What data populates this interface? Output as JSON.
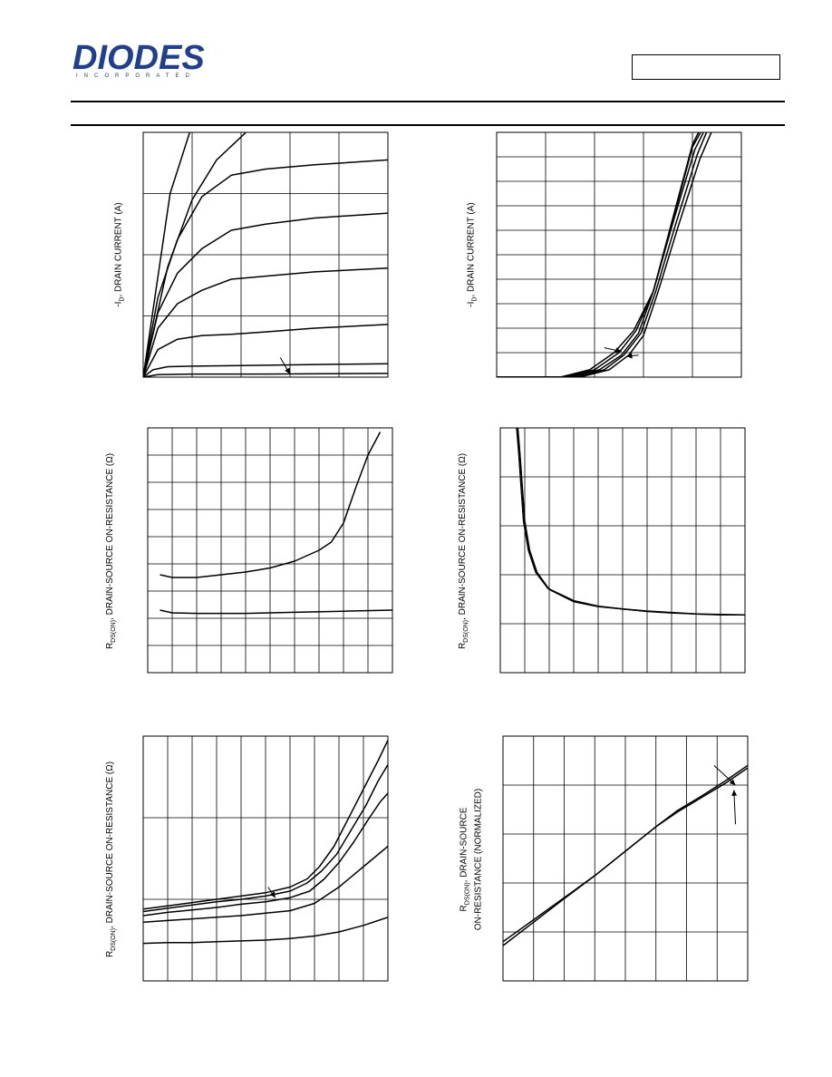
{
  "header": {
    "brand": "DIODES",
    "brand_sub": "INCORPORATED",
    "brand_color": "#1f3f8f",
    "part_number": ""
  },
  "chart_data": [
    {
      "type": "line",
      "ylabel_main": "-I",
      "ylabel_sub": "D",
      "ylabel_rest": ", DRAIN CURRENT (A)",
      "grid": true,
      "xlim": [
        0,
        5
      ],
      "ylim": [
        0,
        4
      ],
      "series": [
        {
          "x": [
            0,
            0.55,
            0.95
          ],
          "y": [
            0,
            3.0,
            4.0
          ]
        },
        {
          "x": [
            0,
            0.5,
            1.0,
            1.5,
            2.1
          ],
          "y": [
            0,
            1.8,
            2.9,
            3.55,
            4.0
          ]
        },
        {
          "x": [
            0,
            0.3,
            0.7,
            1.2,
            1.8,
            2.5,
            3.5,
            5.0
          ],
          "y": [
            0,
            1.3,
            2.25,
            2.95,
            3.3,
            3.4,
            3.47,
            3.55
          ]
        },
        {
          "x": [
            0,
            0.3,
            0.7,
            1.2,
            1.8,
            2.5,
            3.5,
            5.0
          ],
          "y": [
            0,
            1.05,
            1.7,
            2.1,
            2.4,
            2.5,
            2.6,
            2.68
          ]
        },
        {
          "x": [
            0,
            0.3,
            0.7,
            1.2,
            1.8,
            2.5,
            3.5,
            5.0
          ],
          "y": [
            0,
            0.8,
            1.2,
            1.42,
            1.6,
            1.65,
            1.72,
            1.78
          ]
        },
        {
          "x": [
            0,
            0.3,
            0.7,
            1.2,
            1.8,
            2.5,
            3.5,
            5.0
          ],
          "y": [
            0,
            0.45,
            0.62,
            0.68,
            0.7,
            0.74,
            0.8,
            0.86
          ]
        },
        {
          "x": [
            0,
            0.2,
            0.5,
            1.0,
            2.0,
            3.0,
            4.0,
            5.0
          ],
          "y": [
            0,
            0.12,
            0.17,
            0.18,
            0.19,
            0.2,
            0.21,
            0.22
          ]
        },
        {
          "x": [
            0,
            0.3,
            1.0,
            2.5,
            5.0
          ],
          "y": [
            0,
            0.04,
            0.05,
            0.05,
            0.06
          ]
        }
      ],
      "arrows": [
        {
          "from": [
            2.8,
            0.32
          ],
          "to": [
            3.0,
            0.05
          ]
        }
      ]
    },
    {
      "type": "line",
      "ylabel_main": "-I",
      "ylabel_sub": "D",
      "ylabel_rest": ", DRAIN CURRENT (A)",
      "grid": true,
      "xlim": [
        0,
        5
      ],
      "ylim": [
        0,
        10
      ],
      "series": [
        {
          "x": [
            0,
            1.3,
            1.9,
            2.4,
            2.8,
            3.2,
            3.6,
            4.0,
            4.2
          ],
          "y": [
            0,
            0,
            0.3,
            1.0,
            1.9,
            3.5,
            6.5,
            9.5,
            10.3
          ]
        },
        {
          "x": [
            0,
            1.4,
            2.0,
            2.5,
            2.85,
            3.2,
            3.6,
            4.0,
            4.25
          ],
          "y": [
            0,
            0,
            0.3,
            1.0,
            1.9,
            3.5,
            6.4,
            9.4,
            10.3
          ]
        },
        {
          "x": [
            0,
            1.5,
            2.1,
            2.55,
            2.9,
            3.2,
            3.6,
            4.05,
            4.3
          ],
          "y": [
            0,
            0,
            0.3,
            0.9,
            1.8,
            3.5,
            6.3,
            9.3,
            10.3
          ]
        },
        {
          "x": [
            0,
            1.6,
            2.2,
            2.6,
            2.95,
            3.25,
            3.65,
            4.1,
            4.35
          ],
          "y": [
            0,
            0,
            0.3,
            0.9,
            1.8,
            3.5,
            6.2,
            9.1,
            10.3
          ]
        },
        {
          "x": [
            0,
            1.7,
            2.3,
            2.7,
            3.0,
            3.3,
            3.7,
            4.15,
            4.45
          ],
          "y": [
            0,
            0,
            0.3,
            0.9,
            1.7,
            3.5,
            6.1,
            8.9,
            10.3
          ]
        }
      ],
      "arrows": [
        {
          "from": [
            2.2,
            1.2
          ],
          "to": [
            2.55,
            1.05
          ]
        },
        {
          "from": [
            2.9,
            0.9
          ],
          "to": [
            2.65,
            0.85
          ]
        }
      ]
    },
    {
      "type": "line",
      "ylabel_main": "R",
      "ylabel_sub": "DS(ON)",
      "ylabel_rest": ", DRAIN-SOURCE ON-RESISTANCE (Ω)",
      "grid": true,
      "xlim": [
        0,
        10
      ],
      "ylim": [
        0,
        9
      ],
      "series": [
        {
          "x": [
            0.5,
            1.0,
            2.0,
            3.0,
            4.0,
            5.0,
            6.0,
            7.0,
            7.5,
            8.0,
            8.5,
            9.0,
            9.5
          ],
          "y": [
            3.6,
            3.5,
            3.5,
            3.6,
            3.7,
            3.85,
            4.1,
            4.5,
            4.8,
            5.5,
            6.8,
            8.0,
            8.85
          ]
        },
        {
          "x": [
            0.5,
            1.0,
            2.0,
            4.0,
            6.0,
            8.0,
            10.0
          ],
          "y": [
            2.3,
            2.2,
            2.18,
            2.18,
            2.22,
            2.26,
            2.3
          ]
        }
      ]
    },
    {
      "type": "line",
      "ylabel_main": "R",
      "ylabel_sub": "DS(ON)",
      "ylabel_rest": ", DRAIN-SOURCE ON-RESISTANCE (Ω)",
      "grid": true,
      "xlim": [
        0,
        10
      ],
      "ylim": [
        0,
        5
      ],
      "series": [
        {
          "x": [
            0.7,
            0.8,
            0.9,
            1.0,
            1.2,
            1.5,
            2.0,
            3.0,
            4.0,
            5.0,
            6.0,
            7.0,
            8.0,
            9.0,
            10.0
          ],
          "y": [
            5.1,
            4.5,
            3.8,
            3.1,
            2.5,
            2.05,
            1.7,
            1.45,
            1.35,
            1.3,
            1.25,
            1.22,
            1.2,
            1.18,
            1.18
          ]
        },
        {
          "x": [
            0.65,
            0.75,
            0.85,
            0.95,
            1.15,
            1.45,
            1.95,
            3.0,
            4.0,
            5.0,
            6.0,
            7.0,
            8.0,
            9.0,
            10.0
          ],
          "y": [
            5.1,
            4.5,
            3.8,
            3.1,
            2.5,
            2.05,
            1.72,
            1.47,
            1.36,
            1.3,
            1.26,
            1.23,
            1.2,
            1.19,
            1.18
          ]
        }
      ]
    },
    {
      "type": "line",
      "ylabel_main": "R",
      "ylabel_sub": "DS(ON)",
      "ylabel_rest": ", DRAIN-SOURCE ON-RESISTANCE (Ω)",
      "grid": true,
      "xlim": [
        0,
        10
      ],
      "ylim": [
        0,
        3
      ],
      "series": [
        {
          "x": [
            0,
            1,
            2,
            3,
            4,
            5,
            6,
            6.7,
            7.2,
            7.8,
            8.4,
            9.0,
            9.6,
            10.0
          ],
          "y": [
            0.88,
            0.92,
            0.96,
            1.0,
            1.04,
            1.08,
            1.15,
            1.25,
            1.4,
            1.65,
            2.0,
            2.35,
            2.7,
            2.95
          ]
        },
        {
          "x": [
            0,
            1,
            2,
            3,
            4,
            5,
            6,
            6.7,
            7.3,
            7.9,
            8.5,
            9.1,
            9.6,
            10.0
          ],
          "y": [
            0.85,
            0.89,
            0.93,
            0.97,
            1.0,
            1.04,
            1.1,
            1.2,
            1.35,
            1.55,
            1.85,
            2.15,
            2.45,
            2.65
          ]
        },
        {
          "x": [
            0,
            1,
            2,
            3,
            4,
            5,
            6,
            6.8,
            7.4,
            8.0,
            8.6,
            9.2,
            9.7,
            10.0
          ],
          "y": [
            0.8,
            0.84,
            0.87,
            0.9,
            0.94,
            0.97,
            1.02,
            1.1,
            1.25,
            1.45,
            1.7,
            1.98,
            2.2,
            2.3
          ]
        },
        {
          "x": [
            0,
            1,
            2,
            3,
            4,
            5,
            6,
            7,
            8,
            9,
            10
          ],
          "y": [
            0.72,
            0.74,
            0.76,
            0.78,
            0.8,
            0.83,
            0.86,
            0.95,
            1.15,
            1.4,
            1.65
          ]
        },
        {
          "x": [
            0,
            1,
            2,
            3,
            4,
            5,
            6,
            7,
            8,
            9,
            10
          ],
          "y": [
            0.46,
            0.47,
            0.47,
            0.48,
            0.49,
            0.5,
            0.52,
            0.55,
            0.6,
            0.68,
            0.78
          ]
        }
      ],
      "arrows": [
        {
          "from": [
            5.1,
            1.15
          ],
          "to": [
            5.4,
            1.02
          ]
        }
      ]
    },
    {
      "type": "line",
      "ylabel_line1_main": "R",
      "ylabel_line1_sub": "DS(ON)",
      "ylabel_line1_rest": ", DRAIN-SOURCE",
      "ylabel_line2": "ON-RESISTANCE (NORMALIZED)",
      "grid": true,
      "xlim": [
        0,
        8
      ],
      "ylim": [
        0,
        5
      ],
      "series": [
        {
          "x": [
            0,
            1,
            2,
            3,
            4,
            5,
            5.7,
            6.5,
            7.3,
            8.0
          ],
          "y": [
            0.8,
            1.25,
            1.7,
            2.15,
            2.65,
            3.15,
            3.45,
            3.75,
            4.05,
            4.35
          ]
        },
        {
          "x": [
            0,
            1,
            2,
            3,
            4,
            5,
            5.7,
            6.5,
            7.3,
            8.0
          ],
          "y": [
            0.72,
            1.2,
            1.68,
            2.15,
            2.65,
            3.15,
            3.48,
            3.78,
            4.1,
            4.4
          ]
        }
      ],
      "arrows": [
        {
          "from": [
            6.9,
            4.4
          ],
          "to": [
            7.6,
            4.0
          ]
        },
        {
          "from": [
            7.6,
            3.2
          ],
          "to": [
            7.55,
            3.9
          ]
        }
      ]
    }
  ]
}
